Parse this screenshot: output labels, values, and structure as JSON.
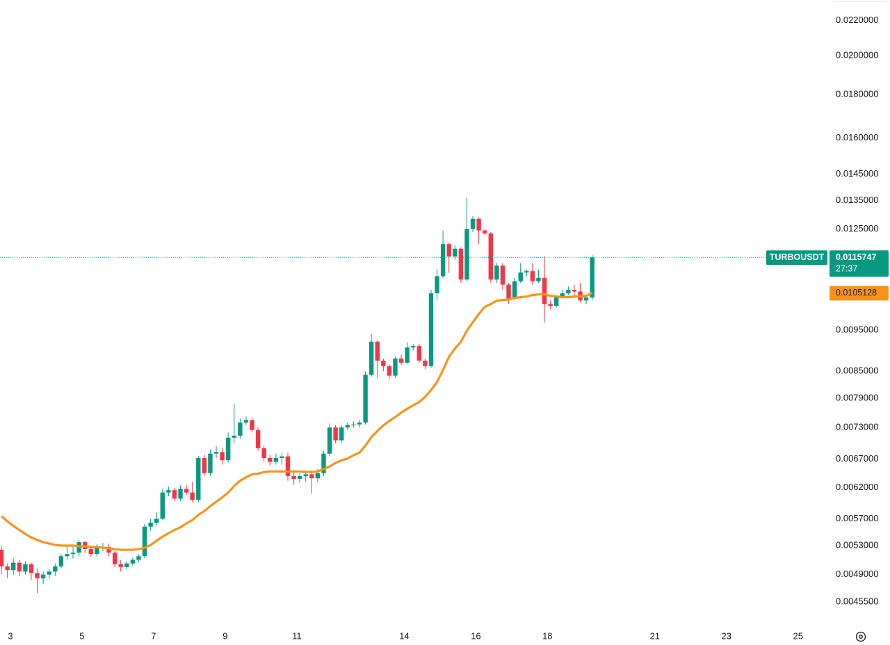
{
  "chart_data": {
    "type": "candlestick",
    "symbol": "TURBOUSDT",
    "countdown": "27:37",
    "up_color": "#089981",
    "down_color": "#f23645",
    "log_scale": true,
    "grid": false,
    "x": [
      2.75,
      2.917,
      3.083,
      3.25,
      3.417,
      3.583,
      3.75,
      3.917,
      4.083,
      4.25,
      4.417,
      4.583,
      4.75,
      4.917,
      5.083,
      5.25,
      5.417,
      5.583,
      5.75,
      5.917,
      6.083,
      6.25,
      6.417,
      6.583,
      6.75,
      6.917,
      7.083,
      7.25,
      7.417,
      7.583,
      7.75,
      7.917,
      8.083,
      8.25,
      8.417,
      8.583,
      8.75,
      8.917,
      9.083,
      9.25,
      9.417,
      9.583,
      9.75,
      9.917,
      10.083,
      10.25,
      10.417,
      10.583,
      10.75,
      10.917,
      11.083,
      11.25,
      11.417,
      11.583,
      11.75,
      11.917,
      12.083,
      12.25,
      12.417,
      12.583,
      12.75,
      12.917,
      13.083,
      13.25,
      13.417,
      13.583,
      13.75,
      13.917,
      14.083,
      14.25,
      14.417,
      14.583,
      14.75,
      14.917,
      15.083,
      15.25,
      15.417,
      15.583,
      15.75,
      15.917,
      16.083,
      16.25,
      16.417,
      16.583,
      16.75,
      16.917,
      17.083,
      17.25,
      17.417,
      17.583,
      17.75,
      17.917,
      18.083,
      18.25,
      18.417,
      18.583,
      18.75,
      18.917,
      19.083,
      19.25
    ],
    "open": [
      0.00524,
      0.00501,
      0.00496,
      0.00506,
      0.00494,
      0.00504,
      0.00492,
      0.00485,
      0.0049,
      0.00494,
      0.00501,
      0.00515,
      0.00518,
      0.0052,
      0.00535,
      0.00525,
      0.00518,
      0.00527,
      0.00528,
      0.0052,
      0.00504,
      0.005,
      0.00505,
      0.0051,
      0.00515,
      0.00558,
      0.00564,
      0.0057,
      0.00612,
      0.00616,
      0.00602,
      0.00618,
      0.00612,
      0.006,
      0.00672,
      0.00645,
      0.0068,
      0.00683,
      0.00668,
      0.0071,
      0.00714,
      0.0074,
      0.00745,
      0.00725,
      0.0069,
      0.00672,
      0.00665,
      0.00672,
      0.00675,
      0.0064,
      0.00635,
      0.0064,
      0.00643,
      0.00636,
      0.00645,
      0.0068,
      0.0073,
      0.00705,
      0.0073,
      0.00735,
      0.00736,
      0.0074,
      0.00842,
      0.00921,
      0.00875,
      0.00862,
      0.0084,
      0.0088,
      0.0087,
      0.00907,
      0.0091,
      0.00875,
      0.00862,
      0.0105,
      0.011,
      0.012,
      0.0116,
      0.01185,
      0.0109,
      0.0125,
      0.01285,
      0.01245,
      0.01235,
      0.0109,
      0.01132,
      0.01075,
      0.01035,
      0.01085,
      0.01111,
      0.01115,
      0.01085,
      0.01095,
      0.0102,
      0.01015,
      0.0104,
      0.0105,
      0.0106,
      0.01055,
      0.0103,
      0.01038
    ],
    "high": [
      0.0053,
      0.00505,
      0.00512,
      0.0051,
      0.00508,
      0.00506,
      0.00498,
      0.00494,
      0.00498,
      0.00505,
      0.00518,
      0.0053,
      0.00528,
      0.00538,
      0.00537,
      0.0053,
      0.00532,
      0.00534,
      0.00533,
      0.00522,
      0.0051,
      0.00508,
      0.00513,
      0.00518,
      0.00562,
      0.0057,
      0.0058,
      0.00618,
      0.00622,
      0.0062,
      0.00624,
      0.00625,
      0.0063,
      0.00676,
      0.00678,
      0.00688,
      0.00694,
      0.0069,
      0.0072,
      0.00778,
      0.00748,
      0.00752,
      0.0075,
      0.0073,
      0.00695,
      0.00678,
      0.0068,
      0.00682,
      0.00682,
      0.00648,
      0.00645,
      0.00648,
      0.0065,
      0.00652,
      0.00685,
      0.00738,
      0.00735,
      0.00734,
      0.0074,
      0.00742,
      0.00745,
      0.0085,
      0.0094,
      0.00925,
      0.0088,
      0.00866,
      0.00885,
      0.0089,
      0.0092,
      0.00915,
      0.00915,
      0.0088,
      0.0106,
      0.0112,
      0.01245,
      0.01205,
      0.01195,
      0.0119,
      0.0136,
      0.01295,
      0.0129,
      0.0125,
      0.0124,
      0.0114,
      0.0114,
      0.0108,
      0.01095,
      0.0114,
      0.0112,
      0.0114,
      0.0112,
      0.0116,
      0.0103,
      0.01045,
      0.0106,
      0.0107,
      0.01075,
      0.0108,
      0.01045,
      0.01165
    ],
    "low": [
      0.0049,
      0.00485,
      0.0049,
      0.00488,
      0.0049,
      0.00483,
      0.00466,
      0.00478,
      0.00484,
      0.00488,
      0.00498,
      0.0051,
      0.00512,
      0.00515,
      0.0052,
      0.00514,
      0.00514,
      0.00522,
      0.00515,
      0.005,
      0.00494,
      0.00497,
      0.00502,
      0.00507,
      0.00512,
      0.00552,
      0.0056,
      0.00568,
      0.00606,
      0.00598,
      0.00598,
      0.00608,
      0.00596,
      0.00596,
      0.0064,
      0.0064,
      0.00672,
      0.0066,
      0.00664,
      0.007,
      0.00708,
      0.00735,
      0.0072,
      0.00685,
      0.00665,
      0.00658,
      0.0066,
      0.0066,
      0.00632,
      0.00625,
      0.00628,
      0.0063,
      0.0061,
      0.0063,
      0.0064,
      0.00675,
      0.007,
      0.007,
      0.00725,
      0.0073,
      0.0073,
      0.00736,
      0.00838,
      0.00835,
      0.0085,
      0.00832,
      0.00835,
      0.00865,
      0.00866,
      0.009,
      0.0087,
      0.00855,
      0.00858,
      0.0103,
      0.01095,
      0.0111,
      0.0115,
      0.0108,
      0.01085,
      0.0124,
      0.012,
      0.0123,
      0.0108,
      0.0108,
      0.0106,
      0.0102,
      0.0103,
      0.0108,
      0.011,
      0.01075,
      0.0108,
      0.0097,
      0.01005,
      0.0101,
      0.01035,
      0.01045,
      0.0104,
      0.01025,
      0.0102,
      0.0103
    ],
    "close": [
      0.00501,
      0.00496,
      0.00506,
      0.00494,
      0.00504,
      0.00492,
      0.00485,
      0.0049,
      0.00494,
      0.00501,
      0.00515,
      0.00518,
      0.0052,
      0.00535,
      0.00525,
      0.00518,
      0.00527,
      0.00528,
      0.0052,
      0.00504,
      0.005,
      0.00505,
      0.0051,
      0.00515,
      0.00558,
      0.00564,
      0.0057,
      0.00612,
      0.00616,
      0.00602,
      0.00618,
      0.00612,
      0.006,
      0.00672,
      0.00645,
      0.0068,
      0.00683,
      0.00668,
      0.0071,
      0.00714,
      0.0074,
      0.00745,
      0.00725,
      0.0069,
      0.00672,
      0.00665,
      0.00672,
      0.00675,
      0.0064,
      0.00635,
      0.0064,
      0.00643,
      0.00636,
      0.00645,
      0.0068,
      0.0073,
      0.00705,
      0.0073,
      0.00735,
      0.00736,
      0.0074,
      0.00842,
      0.00921,
      0.00875,
      0.00862,
      0.0084,
      0.0088,
      0.0087,
      0.00907,
      0.0091,
      0.00875,
      0.00862,
      0.0105,
      0.011,
      0.012,
      0.0116,
      0.01185,
      0.0109,
      0.0125,
      0.01285,
      0.01245,
      0.01235,
      0.0109,
      0.01132,
      0.01075,
      0.01035,
      0.01085,
      0.01111,
      0.01115,
      0.01085,
      0.01095,
      0.0102,
      0.01015,
      0.0104,
      0.0105,
      0.0106,
      0.01055,
      0.0103,
      0.01038,
      0.0115747
    ],
    "ma": {
      "color": "#f7931a",
      "values": [
        0.00574,
        0.00566,
        0.00559,
        0.00553,
        0.00547,
        0.00542,
        0.00538,
        0.00535,
        0.00533,
        0.00531,
        0.0053,
        0.0053,
        0.0053,
        0.00529,
        0.00529,
        0.00528,
        0.00528,
        0.00527,
        0.00526,
        0.00525,
        0.00524,
        0.00524,
        0.00524,
        0.00525,
        0.00527,
        0.00531,
        0.00537,
        0.00543,
        0.00548,
        0.00553,
        0.00557,
        0.00563,
        0.00568,
        0.00576,
        0.00582,
        0.0059,
        0.00597,
        0.00604,
        0.00612,
        0.00623,
        0.00632,
        0.00638,
        0.00643,
        0.00644,
        0.00647,
        0.00648,
        0.00648,
        0.00648,
        0.00648,
        0.00648,
        0.00648,
        0.00647,
        0.00647,
        0.00648,
        0.00652,
        0.00657,
        0.00663,
        0.00668,
        0.00671,
        0.00677,
        0.00682,
        0.00695,
        0.00711,
        0.00723,
        0.00734,
        0.00743,
        0.00751,
        0.0076,
        0.00768,
        0.00775,
        0.00782,
        0.00793,
        0.00808,
        0.00826,
        0.00853,
        0.00884,
        0.00904,
        0.00921,
        0.00949,
        0.00971,
        0.00993,
        0.01012,
        0.0102,
        0.01029,
        0.01031,
        0.01033,
        0.01037,
        0.01039,
        0.01041,
        0.01045,
        0.01047,
        0.01047,
        0.01043,
        0.01041,
        0.01039,
        0.01039,
        0.01041,
        0.01041,
        0.01043,
        0.0105128
      ]
    },
    "xlim": [
      2.71,
      25.82
    ],
    "xticks": [
      3,
      5,
      7,
      9,
      11,
      14,
      16,
      18,
      21,
      23,
      25
    ],
    "ylim": [
      0.004268,
      0.02325
    ],
    "yticks": [
      {
        "value": 0.022,
        "label": "0.0220000"
      },
      {
        "value": 0.02,
        "label": "0.0200000"
      },
      {
        "value": 0.018,
        "label": "0.0180000"
      },
      {
        "value": 0.016,
        "label": "0.0160000"
      },
      {
        "value": 0.0145,
        "label": "0.0145000"
      },
      {
        "value": 0.0135,
        "label": "0.0135000"
      },
      {
        "value": 0.0125,
        "label": "0.0125000"
      },
      {
        "value": 0.0095,
        "label": "0.0095000"
      },
      {
        "value": 0.0085,
        "label": "0.0085000"
      },
      {
        "value": 0.0079,
        "label": "0.0079000"
      },
      {
        "value": 0.0073,
        "label": "0.0073000"
      },
      {
        "value": 0.0067,
        "label": "0.0067000"
      },
      {
        "value": 0.0062,
        "label": "0.0062000"
      },
      {
        "value": 0.0057,
        "label": "0.0057000"
      },
      {
        "value": 0.0053,
        "label": "0.0053000"
      },
      {
        "value": 0.0049,
        "label": "0.0049000"
      },
      {
        "value": 0.00455,
        "label": "0.0045500"
      }
    ]
  }
}
